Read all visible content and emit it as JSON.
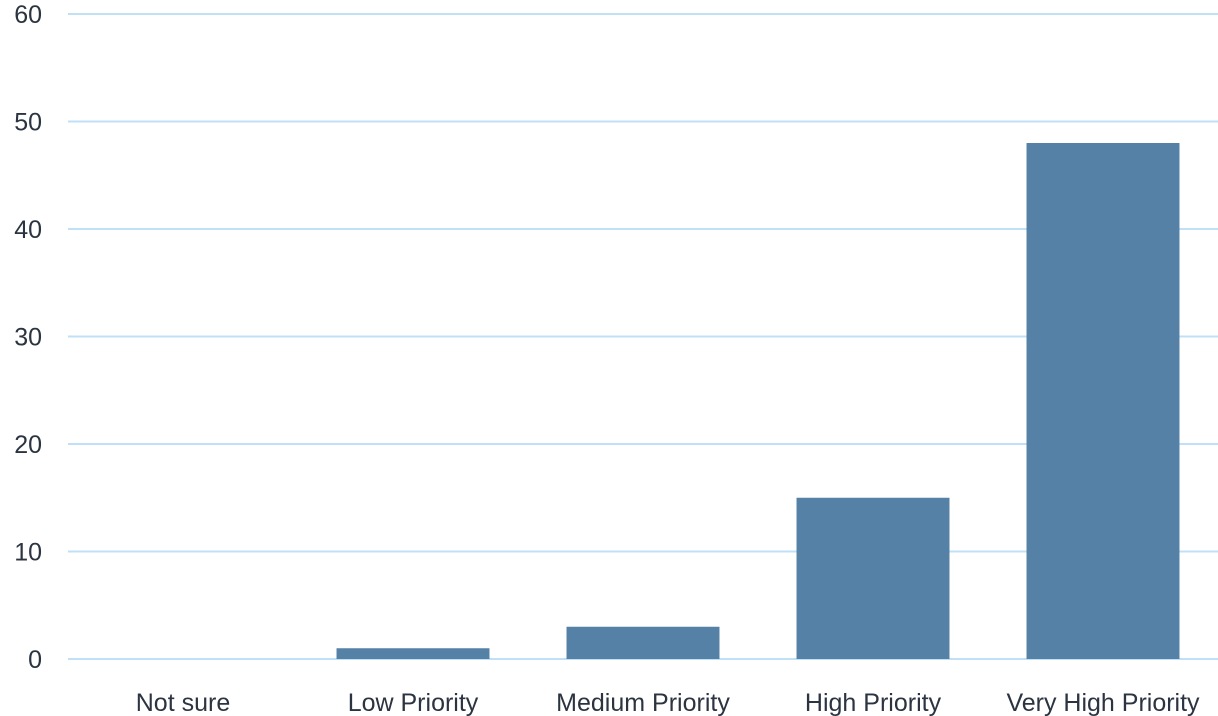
{
  "chart_data": {
    "type": "bar",
    "title": "",
    "xlabel": "",
    "ylabel": "",
    "categories": [
      "Not sure",
      "Low Priority",
      "Medium Priority",
      "High Priority",
      "Very High Priority"
    ],
    "values": [
      0,
      1,
      3,
      15,
      48
    ],
    "ylim": [
      0,
      60
    ],
    "yticks": [
      "0",
      "10",
      "20",
      "30",
      "40",
      "50",
      "60"
    ],
    "grid": true,
    "legend": "none",
    "colors": {
      "bar": "#5581a6",
      "grid": "#bfe0f6",
      "text": "#2b3440"
    }
  }
}
